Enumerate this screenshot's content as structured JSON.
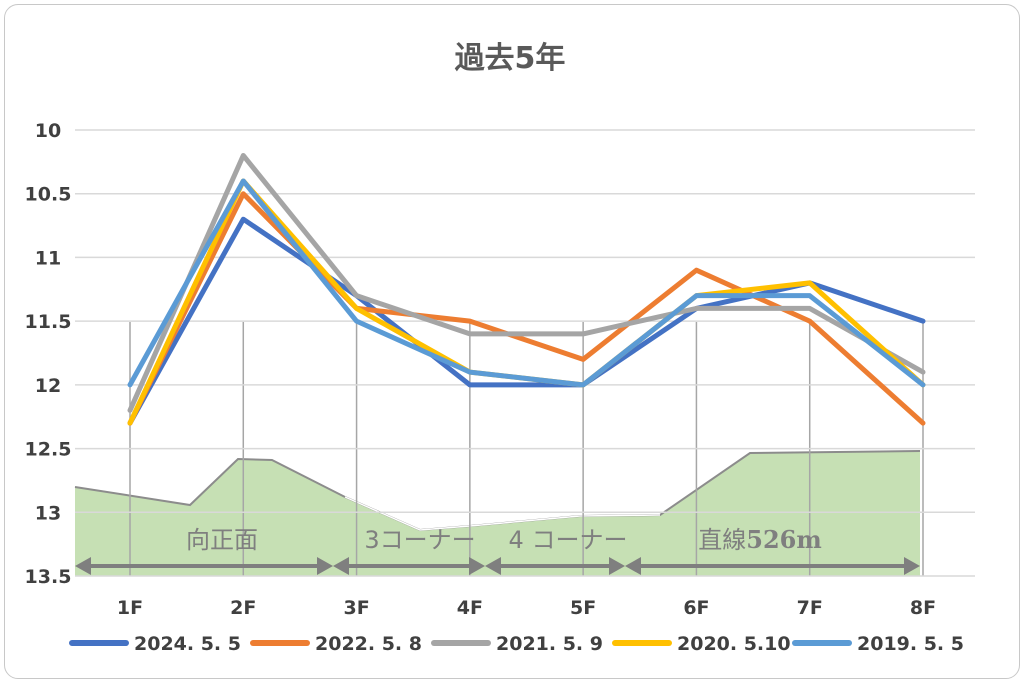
{
  "chart_data": {
    "type": "line",
    "title": "過去5年",
    "categories": [
      "1F",
      "2F",
      "3F",
      "4F",
      "5F",
      "6F",
      "7F",
      "8F"
    ],
    "y_ticks": [
      "10",
      "10.5",
      "11",
      "11.5",
      "12",
      "12.5",
      "13",
      "13.5"
    ],
    "ylim": [
      10,
      13.5
    ],
    "y_reversed": true,
    "grid": "horizontal",
    "legend_position": "bottom",
    "series": [
      {
        "name": "2024. 5. 5",
        "color": "#4472c4",
        "values": [
          12.3,
          10.7,
          11.3,
          12.0,
          12.0,
          11.4,
          11.2,
          11.5
        ]
      },
      {
        "name": "2022. 5. 8",
        "color": "#ed7d31",
        "values": [
          12.3,
          10.5,
          11.4,
          11.5,
          11.8,
          11.1,
          11.5,
          12.3
        ]
      },
      {
        "name": "2021. 5. 9",
        "color": "#a5a5a5",
        "values": [
          12.2,
          10.2,
          11.3,
          11.6,
          11.6,
          11.4,
          11.4,
          11.9
        ]
      },
      {
        "name": "2020. 5.10",
        "color": "#ffc000",
        "values": [
          12.3,
          10.4,
          11.4,
          11.9,
          12.0,
          11.3,
          11.2,
          12.0
        ]
      },
      {
        "name": "2019. 5. 5",
        "color": "#5b9bd5",
        "values": [
          12.0,
          10.4,
          11.5,
          11.9,
          12.0,
          11.3,
          11.3,
          12.0
        ]
      }
    ],
    "course_profile": {
      "fill": "#c6e0b4",
      "sections": [
        {
          "label": "向正面"
        },
        {
          "label": "3コーナー"
        },
        {
          "label": "4 コーナー"
        },
        {
          "label": "直線",
          "label_bold": "526m"
        }
      ]
    }
  }
}
